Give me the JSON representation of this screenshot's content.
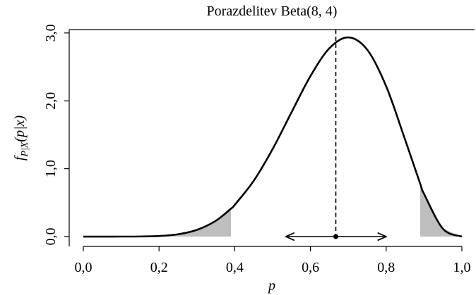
{
  "chart_data": {
    "type": "line",
    "title": "Porazdelitev Beta(8, 4)",
    "xlabel": "p",
    "ylabel": {
      "main": "f",
      "sub": "P|X",
      "arg": "(p|x)"
    },
    "x": [
      0,
      0.05,
      0.1,
      0.15,
      0.2,
      0.25,
      0.3,
      0.35,
      0.39,
      0.4,
      0.45,
      0.5,
      0.55,
      0.6,
      0.65,
      0.7,
      0.75,
      0.8,
      0.85,
      0.89,
      0.9,
      0.95,
      1.0
    ],
    "series": [
      {
        "color": "#000000",
        "values": [
          0,
          0,
          0.0001,
          0.0014,
          0.0087,
          0.034,
          0.099,
          0.2332,
          0.4112,
          0.4671,
          0.8206,
          1.2891,
          1.8312,
          2.3649,
          2.7744,
          2.935,
          2.753,
          2.2146,
          1.4282,
          0.7771,
          0.6314,
          0.1152,
          0
        ]
      }
    ],
    "shaded": [
      {
        "from": 0,
        "to": 0.39
      },
      {
        "from": 0.89,
        "to": 1.0
      }
    ],
    "shade_color": "#bebebe",
    "mean": 0.667,
    "interval": [
      0.535,
      0.8
    ],
    "xlim": [
      -0.0373,
      1.0336
    ],
    "ylim": [
      -0.145,
      3.05
    ],
    "xticks": [
      {
        "value": 0,
        "label": "0,0"
      },
      {
        "value": 0.2,
        "label": "0,2"
      },
      {
        "value": 0.4,
        "label": "0,4"
      },
      {
        "value": 0.6,
        "label": "0,6"
      },
      {
        "value": 0.8,
        "label": "0,8"
      },
      {
        "value": 1.0,
        "label": "1,0"
      }
    ],
    "yticks": [
      {
        "value": 0,
        "label": "0,0"
      },
      {
        "value": 1,
        "label": "1,0"
      },
      {
        "value": 2,
        "label": "2,0"
      },
      {
        "value": 3,
        "label": "3,0"
      }
    ]
  }
}
